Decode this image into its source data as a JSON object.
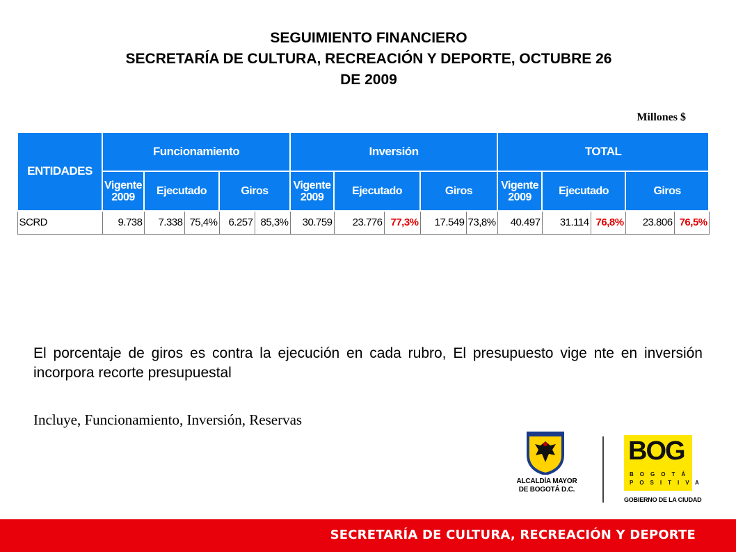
{
  "header": {
    "title_line1": "SEGUIMIENTO FINANCIERO",
    "title_line2": "SECRETARÍA DE CULTURA, RECREACIÓN Y DEPORTE,  OCTUBRE 26",
    "title_line3": "DE 2009",
    "units": "Millones $"
  },
  "table": {
    "entity_header": "ENTIDADES",
    "groups": [
      "Funcionamiento",
      "Inversión",
      "TOTAL"
    ],
    "sub": {
      "vigente": "Vigente 2009",
      "ejecutado": "Ejecutado",
      "giros": "Giros"
    },
    "row": {
      "entity": "SCRD",
      "cells": [
        "9.738",
        "7.338",
        "75,4%",
        "6.257",
        "85,3%",
        "30.759",
        "23.776",
        "77,3%",
        "17.549",
        "73,8%",
        "40.497",
        "31.114",
        "76,8%",
        "23.806",
        "76,5%"
      ]
    },
    "highlight_color": "#e00000",
    "header_color": "#0a7ef0"
  },
  "notes": {
    "paragraph": "El porcentaje de giros es contra la ejecución en cada rubro, El presupuesto vige nte en inversión incorpora recorte presupuestal",
    "includes": "Incluye, Funcionamiento, Inversión, Reservas"
  },
  "logos": {
    "alcaldia_line1": "ALCALDÍA MAYOR",
    "alcaldia_line2": "DE BOGOTÁ D.C.",
    "bog_word": "BOG",
    "bog_line1": "BOGOTÁ",
    "bog_line2": "POSITIVA",
    "gobierno": "GOBIERNO DE LA CIUDAD"
  },
  "footer": {
    "text": "SECRETARÍA DE CULTURA, RECREACIÓN Y DEPORTE",
    "color": "#e8000b"
  }
}
